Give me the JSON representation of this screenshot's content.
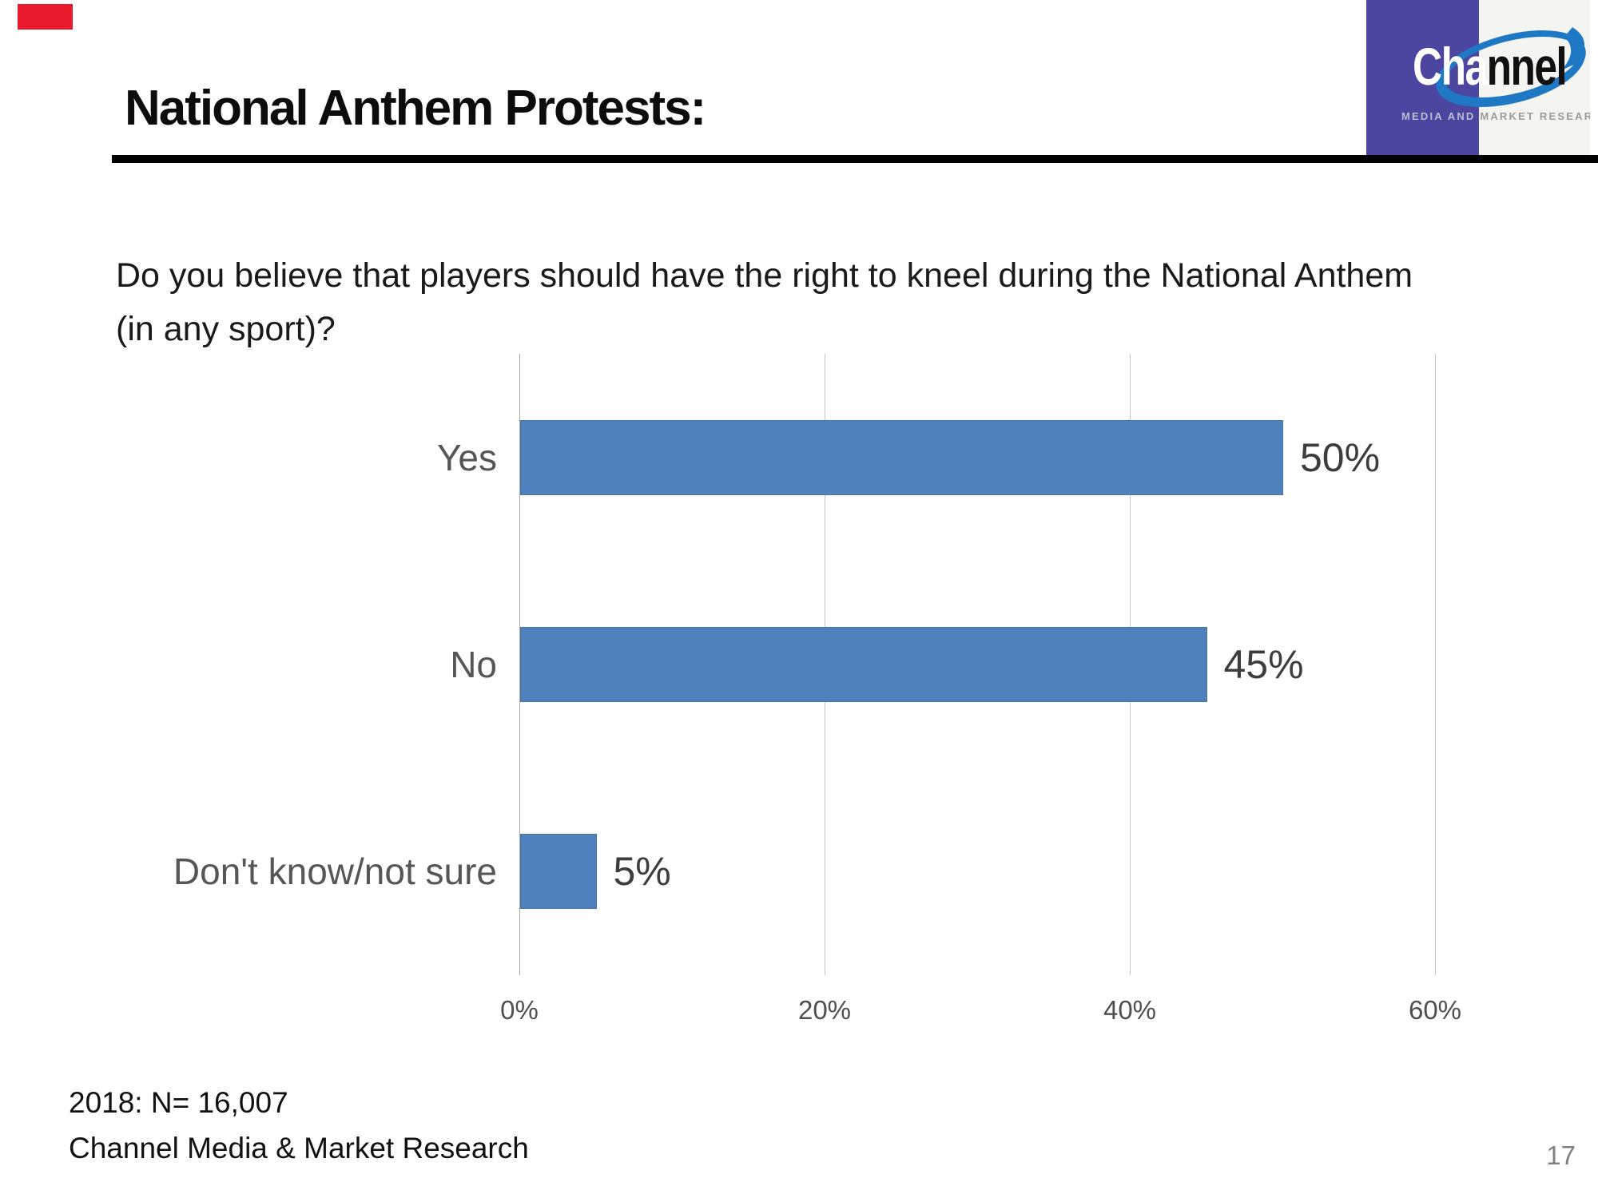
{
  "slide": {
    "title": "National Anthem Protests:",
    "question_lines": [
      "Do you believe that players should have the right to kneel during the National Anthem",
      "(in any sport)?"
    ],
    "footer_lines": [
      "2018: N= 16,007",
      "Channel Media & Market Research"
    ],
    "page_number": "17"
  },
  "decorations": {
    "red_mark_color": "#e8192b"
  },
  "logo": {
    "brand_part1": "Cha",
    "brand_part2": "nnel",
    "tagline_part1": "MEDIA AND",
    "tagline_part2": "MARKET RESEARCH",
    "colors": {
      "purple": "#4c46a0",
      "swoosh_blue": "#1e78c4",
      "panel": "#f4f4f1"
    }
  },
  "chart_data": {
    "type": "bar",
    "orientation": "horizontal",
    "title": "",
    "categories": [
      "Yes",
      "No",
      "Don't know/not sure"
    ],
    "values": [
      50,
      45,
      5
    ],
    "value_labels": [
      "50%",
      "45%",
      "5%"
    ],
    "x_ticks": [
      "0%",
      "20%",
      "40%",
      "60%"
    ],
    "x_tick_values": [
      0,
      20,
      40,
      60
    ],
    "xlim": [
      0,
      60
    ],
    "grid": true,
    "legend": false,
    "bar_color": "#4F81BD",
    "grid_color": "#c6c6c6",
    "label_color": "#3d3d3d"
  }
}
